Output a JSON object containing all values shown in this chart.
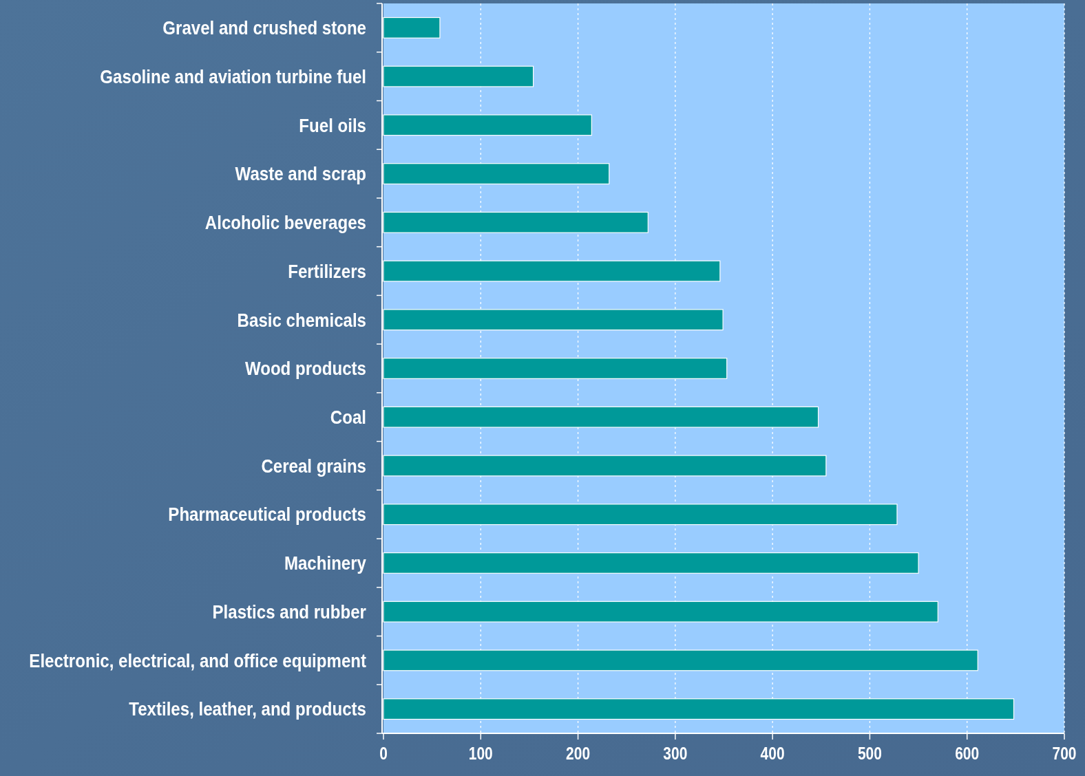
{
  "chart_data": {
    "type": "bar",
    "orientation": "horizontal",
    "categories": [
      "Gravel and crushed stone",
      "Gasoline and aviation turbine fuel",
      "Fuel oils",
      "Waste and scrap",
      "Alcoholic beverages",
      "Fertilizers",
      "Basic chemicals",
      "Wood products",
      "Coal",
      "Cereal grains",
      "Pharmaceutical products",
      "Machinery",
      "Plastics and rubber",
      "Electronic, electrical, and office equipment",
      "Textiles, leather, and products"
    ],
    "values": [
      58,
      154,
      214,
      232,
      272,
      346,
      349,
      353,
      447,
      455,
      528,
      550,
      570,
      611,
      648
    ],
    "color": "#009999",
    "xlim": [
      0,
      700
    ],
    "xticks": [
      0,
      100,
      200,
      300,
      400,
      500,
      600,
      700
    ],
    "grid": "x"
  }
}
